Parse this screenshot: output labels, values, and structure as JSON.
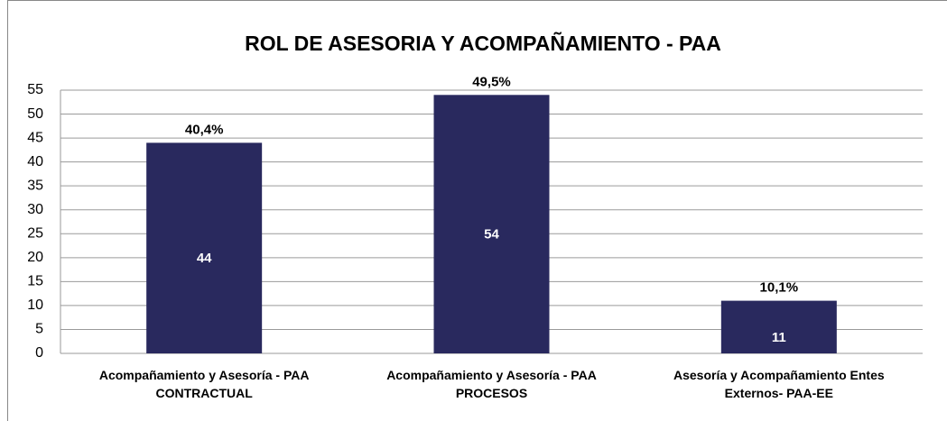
{
  "chart_data": {
    "type": "bar",
    "title": "ROL DE ASESORIA Y ACOMPAÑAMIENTO - PAA",
    "categories": [
      "Acompañamiento y Asesoría - PAA\nCONTRACTUAL",
      "Acompañamiento y Asesoría - PAA\nPROCESOS",
      "Asesoría y Acompañamiento Entes\nExternos- PAA-EE"
    ],
    "values": [
      44,
      54,
      11
    ],
    "annotations": [
      "40,4%",
      "49,5%",
      "10,1%"
    ],
    "color": "#29295e",
    "ylim": [
      0,
      55
    ],
    "yticks": [
      0,
      5,
      10,
      15,
      20,
      25,
      30,
      35,
      40,
      45,
      50,
      55
    ],
    "grid": true
  }
}
